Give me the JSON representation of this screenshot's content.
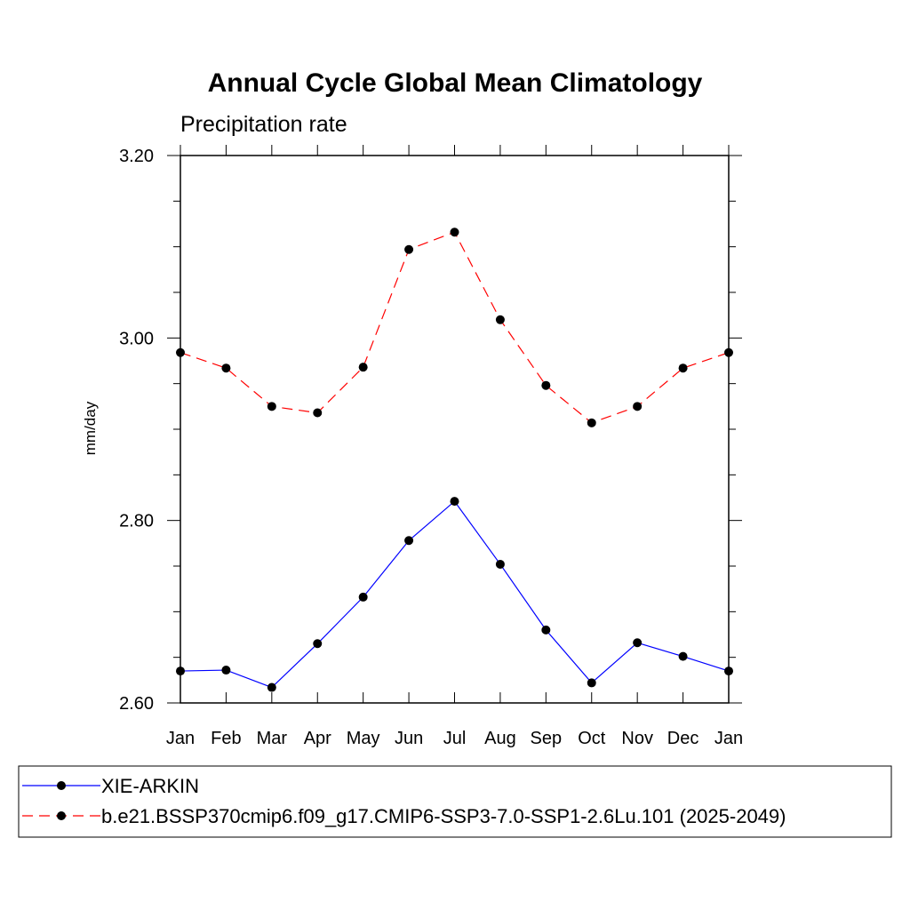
{
  "chart_data": {
    "type": "line",
    "title": "Annual Cycle Global Mean Climatology",
    "subtitle": "Precipitation rate",
    "xlabel": "",
    "ylabel": "mm/day",
    "categories": [
      "Jan",
      "Feb",
      "Mar",
      "Apr",
      "May",
      "Jun",
      "Jul",
      "Aug",
      "Sep",
      "Oct",
      "Nov",
      "Dec",
      "Jan"
    ],
    "ylim": [
      2.6,
      3.2
    ],
    "yticks": [
      "2.60",
      "2.80",
      "3.00",
      "3.20"
    ],
    "legend_position": "bottom",
    "series": [
      {
        "name": "XIE-ARKIN",
        "color": "#0000ff",
        "dash": "solid",
        "values": [
          2.635,
          2.636,
          2.617,
          2.665,
          2.716,
          2.778,
          2.821,
          2.752,
          2.68,
          2.622,
          2.666,
          2.651,
          2.635
        ]
      },
      {
        "name": "b.e21.BSSP370cmip6.f09_g17.CMIP6-SSP3-7.0-SSP1-2.6Lu.101 (2025-2049)",
        "color": "#ff0000",
        "dash": "dashed",
        "values": [
          2.984,
          2.967,
          2.925,
          2.918,
          2.968,
          3.097,
          3.116,
          3.02,
          2.948,
          2.907,
          2.925,
          2.967,
          2.984
        ]
      }
    ]
  }
}
